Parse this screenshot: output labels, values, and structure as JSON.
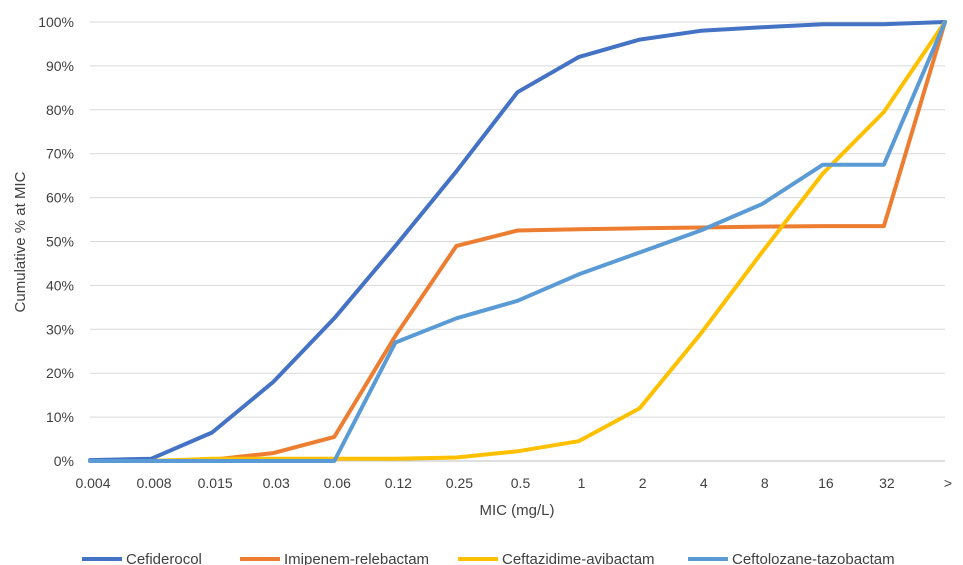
{
  "chart_data": {
    "type": "line",
    "xlabel": "MIC (mg/L)",
    "ylabel": "Cumulative % at MIC",
    "categories": [
      "0.004",
      "0.008",
      "0.015",
      "0.03",
      "0.06",
      "0.12",
      "0.25",
      "0.5",
      "1",
      "2",
      "4",
      "8",
      "16",
      "32",
      ">"
    ],
    "y_ticks": [
      "0%",
      "10%",
      "20%",
      "30%",
      "40%",
      "50%",
      "60%",
      "70%",
      "80%",
      "90%",
      "100%"
    ],
    "ylim": [
      0,
      100
    ],
    "grid": true,
    "legend_position": "bottom",
    "series": [
      {
        "name": "Cefiderocol",
        "color": "#4472C4",
        "values": [
          0.2,
          0.5,
          6.5,
          18,
          32.5,
          49,
          66,
          84,
          92,
          96,
          98,
          98.8,
          99.5,
          99.5,
          100
        ]
      },
      {
        "name": "Imipenem-relebactam",
        "color": "#ED7D31",
        "values": [
          0,
          0,
          0.3,
          1.8,
          5.5,
          28.5,
          49,
          52.5,
          52.8,
          53,
          53.2,
          53.4,
          53.5,
          53.5,
          100
        ]
      },
      {
        "name": "Ceftazidime-avibactam",
        "color": "#FFC000",
        "values": [
          0,
          0,
          0.5,
          0.5,
          0.5,
          0.5,
          0.8,
          2.2,
          4.5,
          12,
          29,
          47.5,
          65.5,
          79.5,
          100
        ]
      },
      {
        "name": "Ceftolozane-tazobactam",
        "color": "#5B9BD5",
        "values": [
          0,
          0,
          0,
          0,
          0,
          27,
          32.5,
          36.5,
          42.5,
          47.5,
          52.5,
          58.5,
          67.5,
          67.5,
          100
        ]
      }
    ]
  }
}
